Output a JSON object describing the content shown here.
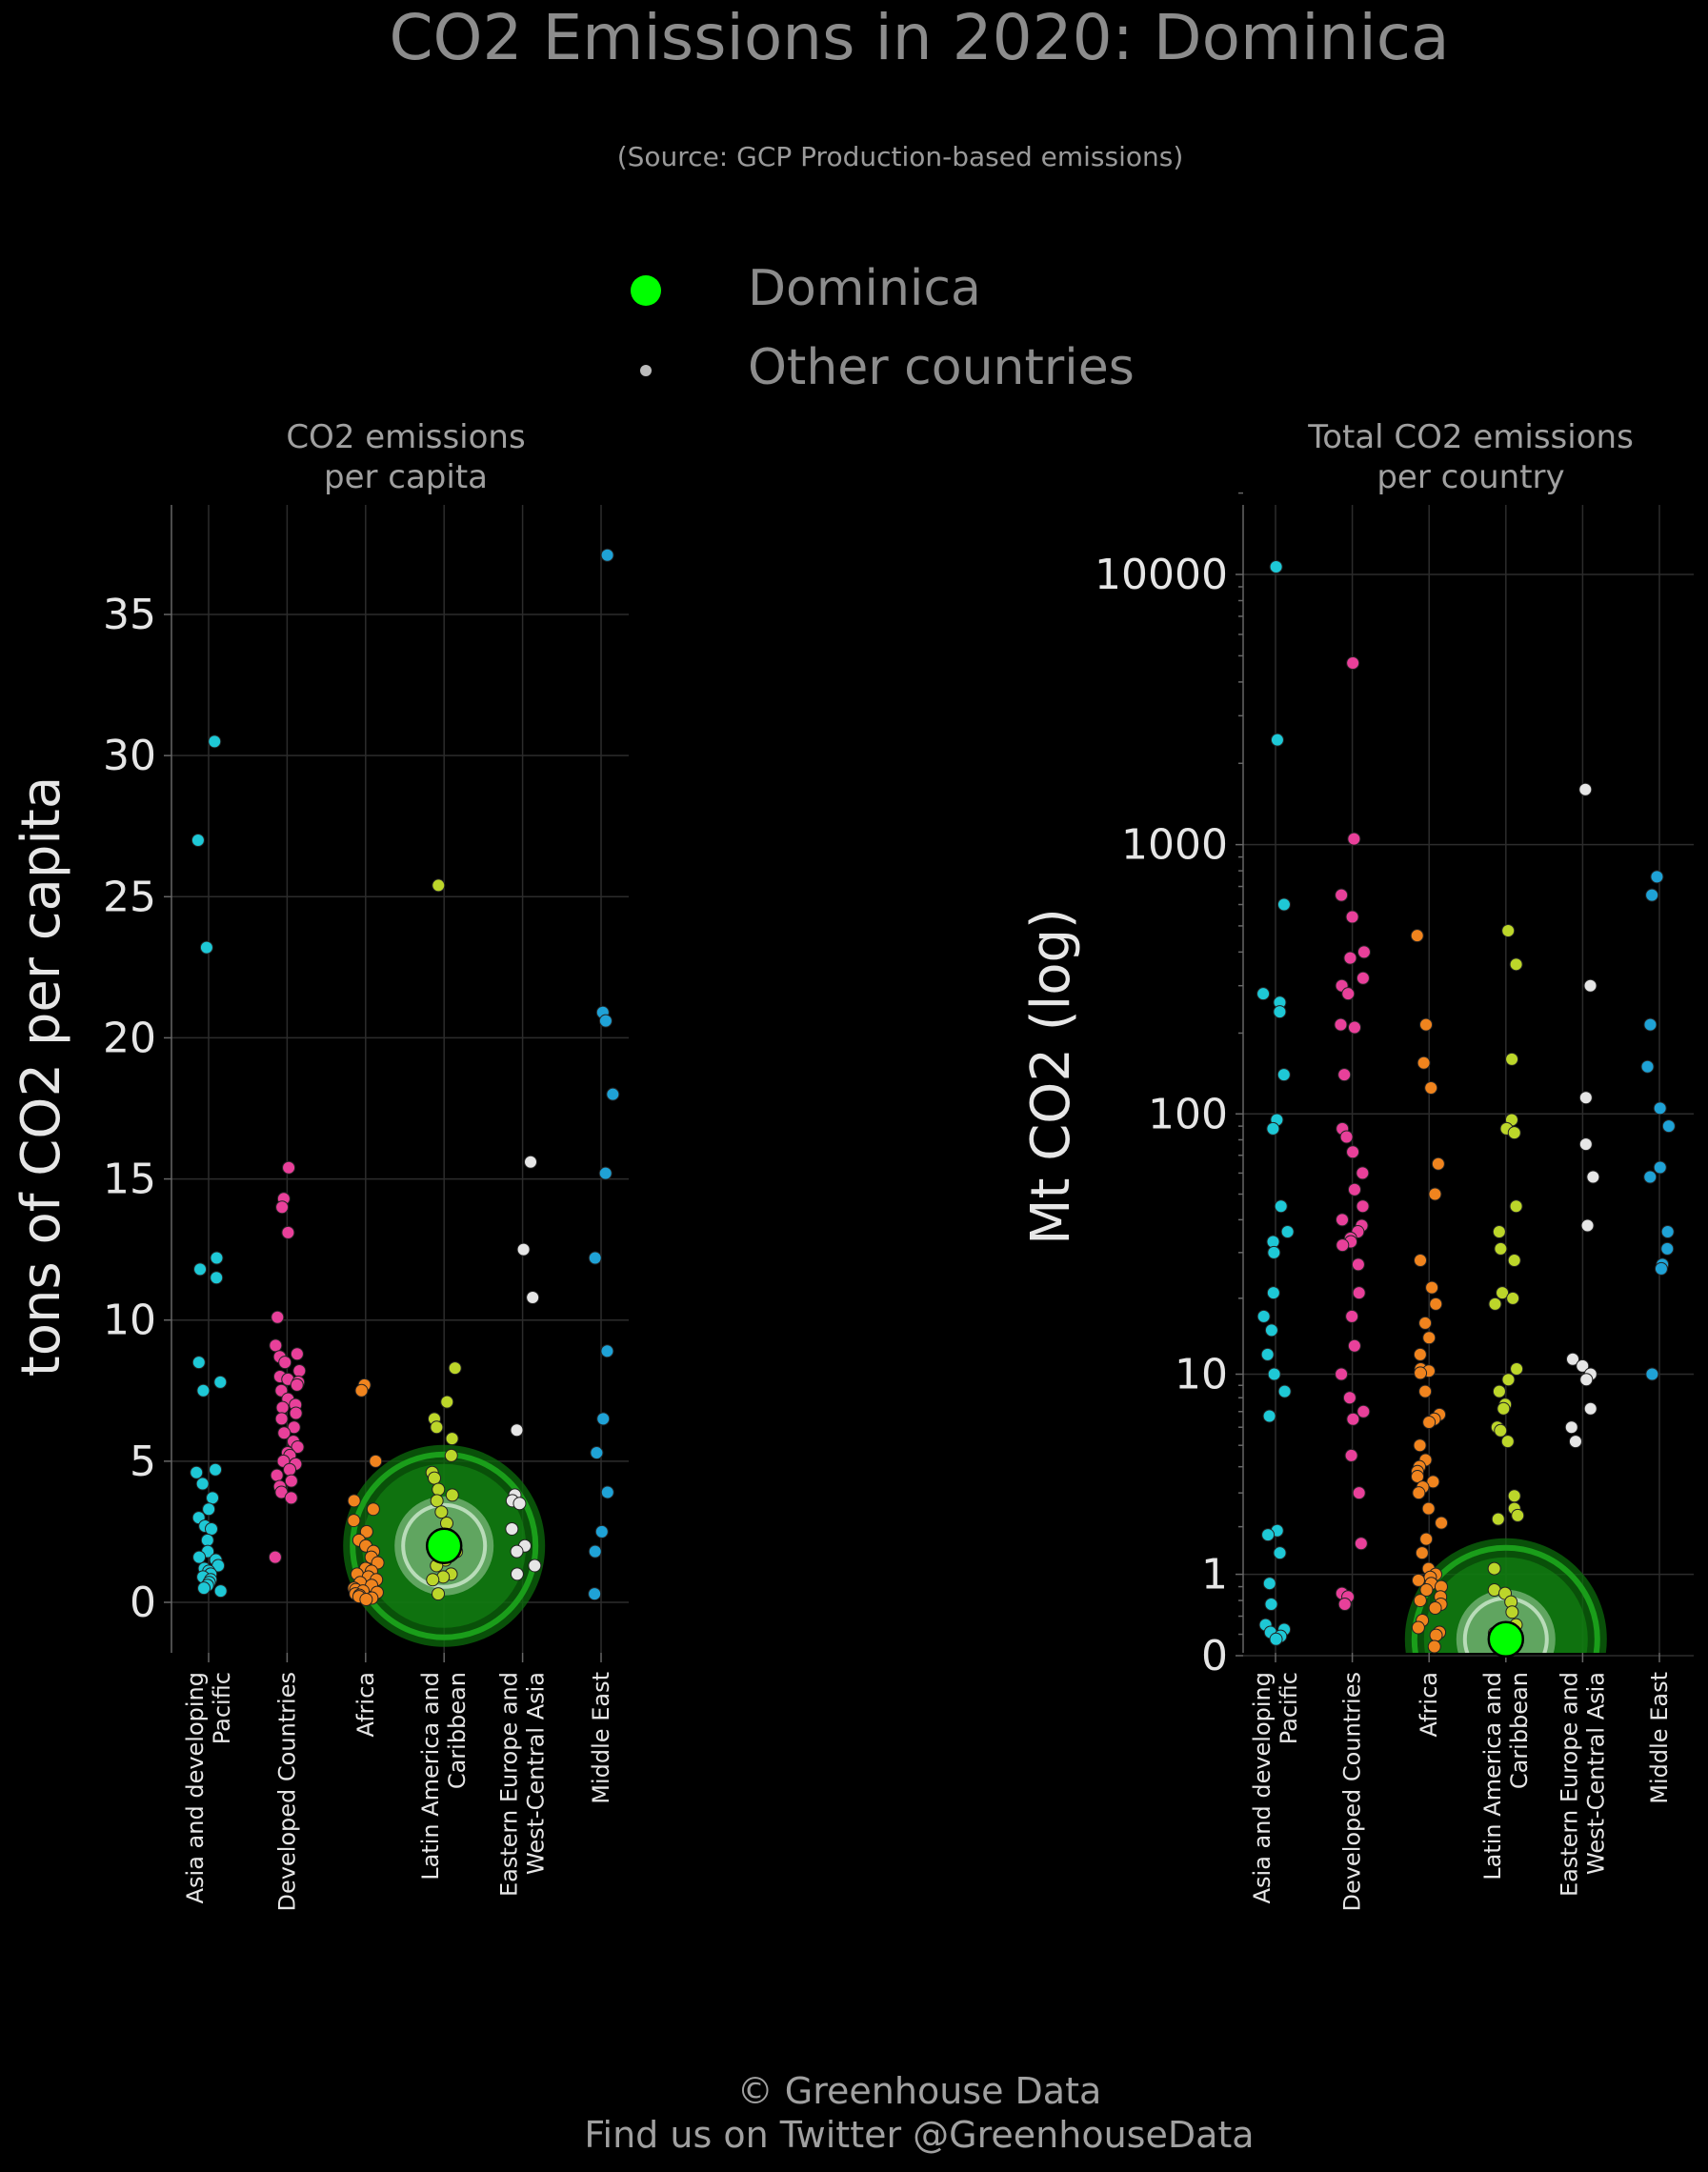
{
  "title": "CO2 Emissions in 2020: Dominica",
  "subtitle": "(Source: GCP Production-based emissions)",
  "legend": {
    "highlight_label": "Dominica",
    "other_label": "Other countries",
    "highlight_color": "#00ff00",
    "other_color": "#bbbbbb"
  },
  "footer": {
    "line1": "© Greenhouse Data",
    "line2": "Find us on Twitter @GreenhouseData"
  },
  "region_colors": {
    "Asia and developing Pacific": "#1ec8d6",
    "Developed Countries": "#e8409a",
    "Africa": "#f0841e",
    "Latin America and Caribbean": "#bcd62a",
    "Eastern Europe and West-Central Asia": "#e6e6e6",
    "Middle East": "#1fa2d6"
  },
  "chart_data": [
    {
      "type": "scatter",
      "title": "CO2 emissions\nper capita",
      "ylabel": "tons of CO2 per capita",
      "scale": "linear",
      "ylim": [
        -1.5,
        38.5
      ],
      "yticks": [
        0,
        5,
        10,
        15,
        20,
        25,
        30,
        35
      ],
      "ytick_labels": [
        "0",
        "5",
        "10",
        "15",
        "20",
        "25",
        "30",
        "35"
      ],
      "categories": [
        "Asia and developing\nPacific",
        "Developed Countries",
        "Africa",
        "Latin America and\nCaribbean",
        "Eastern Europe and\nWest-Central Asia",
        "Middle East"
      ],
      "highlight": {
        "name": "Dominica",
        "category": "Latin America and\nCaribbean",
        "value": 2.0
      },
      "series": [
        {
          "region": "Asia and developing Pacific",
          "values": [
            30.5,
            27.0,
            23.2,
            12.2,
            11.8,
            11.5,
            8.5,
            7.8,
            7.5,
            4.7,
            4.6,
            4.2,
            3.7,
            3.3,
            3.0,
            2.7,
            2.6,
            2.2,
            1.8,
            1.6,
            1.5,
            1.3,
            1.2,
            1.1,
            1.0,
            0.9,
            0.8,
            0.7,
            0.6,
            0.5,
            0.4
          ]
        },
        {
          "region": "Developed Countries",
          "values": [
            15.4,
            14.3,
            14.0,
            13.1,
            10.1,
            9.1,
            8.8,
            8.7,
            8.5,
            8.2,
            8.0,
            7.9,
            7.8,
            7.7,
            7.5,
            7.2,
            7.0,
            6.9,
            6.7,
            6.5,
            6.2,
            6.0,
            5.7,
            5.5,
            5.3,
            5.2,
            5.0,
            4.9,
            4.7,
            4.5,
            4.3,
            4.1,
            3.9,
            3.7,
            1.6
          ]
        },
        {
          "region": "Africa",
          "values": [
            7.7,
            7.5,
            5.0,
            3.6,
            3.3,
            2.9,
            2.5,
            2.2,
            2.0,
            1.8,
            1.6,
            1.4,
            1.2,
            1.1,
            1.0,
            0.9,
            0.8,
            0.7,
            0.6,
            0.5,
            0.45,
            0.4,
            0.35,
            0.3,
            0.25,
            0.2,
            0.15,
            0.1
          ]
        },
        {
          "region": "Latin America and Caribbean",
          "values": [
            25.4,
            8.3,
            7.1,
            6.5,
            6.2,
            5.8,
            5.2,
            4.6,
            4.4,
            4.0,
            3.8,
            3.6,
            3.2,
            2.8,
            2.4,
            2.2,
            1.8,
            1.5,
            1.3,
            1.0,
            0.9,
            0.8,
            0.3
          ]
        },
        {
          "region": "Eastern Europe and West-Central Asia",
          "values": [
            15.6,
            12.5,
            10.8,
            6.1,
            3.8,
            3.6,
            3.5,
            2.6,
            2.0,
            1.8,
            1.3,
            1.0
          ]
        },
        {
          "region": "Middle East",
          "values": [
            37.1,
            20.9,
            20.6,
            18.0,
            15.2,
            12.2,
            8.9,
            6.5,
            5.3,
            3.9,
            2.5,
            1.8,
            0.3
          ]
        }
      ]
    },
    {
      "type": "scatter",
      "title": "Total CO2 emissions\nper country",
      "ylabel": "Mt CO2 (log)",
      "scale": "log10(x+1)",
      "ylim": [
        0,
        20000
      ],
      "yticks": [
        0,
        1,
        10,
        100,
        1000,
        10000
      ],
      "ytick_labels": [
        "0",
        "1",
        "10",
        "100",
        "1000",
        "10000"
      ],
      "categories": [
        "Asia and developing\nPacific",
        "Developed Countries",
        "Africa",
        "Latin America and\nCaribbean",
        "Eastern Europe and\nWest-Central Asia",
        "Middle East"
      ],
      "highlight": {
        "name": "Dominica",
        "category": "Latin America and\nCaribbean",
        "value": 0.15
      },
      "series": [
        {
          "region": "Asia and developing Pacific",
          "values": [
            10668,
            2442,
            600,
            280,
            260,
            240,
            140,
            95,
            88,
            45,
            36,
            33,
            30,
            21,
            17,
            15,
            12,
            10,
            8.5,
            6.7,
            1.9,
            1.8,
            1.4,
            0.85,
            0.55,
            0.3,
            0.25,
            0.22,
            0.18,
            0.15
          ]
        },
        {
          "region": "Developed Countries",
          "values": [
            4700,
            1050,
            650,
            540,
            400,
            380,
            320,
            300,
            280,
            215,
            210,
            140,
            88,
            82,
            72,
            60,
            52,
            45,
            40,
            38,
            36,
            34,
            33,
            32,
            27,
            21,
            17,
            13,
            10,
            8,
            7,
            6.5,
            4.5,
            3,
            1.6,
            0.7,
            0.65,
            0.55
          ]
        },
        {
          "region": "Africa",
          "values": [
            460,
            215,
            155,
            125,
            65,
            50,
            28,
            22,
            19,
            16,
            14,
            12,
            10.5,
            10.3,
            10.1,
            8.5,
            6.8,
            6.5,
            6.3,
            5,
            4.3,
            4.0,
            3.8,
            3.6,
            3.4,
            3.2,
            3.0,
            2.5,
            2.1,
            1.7,
            1.4,
            1.1,
            1.0,
            0.95,
            0.9,
            0.85,
            0.8,
            0.75,
            0.65,
            0.6,
            0.55,
            0.5,
            0.35,
            0.27,
            0.22,
            0.19,
            0.08
          ]
        },
        {
          "region": "Latin America and Caribbean",
          "values": [
            480,
            360,
            160,
            95,
            88,
            85,
            45,
            36,
            31,
            28,
            21,
            20,
            19,
            10.5,
            9.5,
            8.5,
            7.5,
            7.2,
            6,
            5.8,
            5.2,
            2.9,
            2.5,
            2.3,
            2.2,
            1.1,
            0.75,
            0.7,
            0.58,
            0.45,
            0.3,
            0.21,
            0.19
          ]
        },
        {
          "region": "Eastern Europe and West-Central Asia",
          "values": [
            1600,
            300,
            115,
            77,
            58,
            38,
            11.5,
            10.8,
            10,
            9.5,
            7.2,
            6,
            5.2
          ]
        },
        {
          "region": "Middle East",
          "values": [
            760,
            650,
            215,
            150,
            105,
            90,
            63,
            58,
            36,
            31,
            27,
            26,
            10
          ]
        }
      ]
    }
  ]
}
